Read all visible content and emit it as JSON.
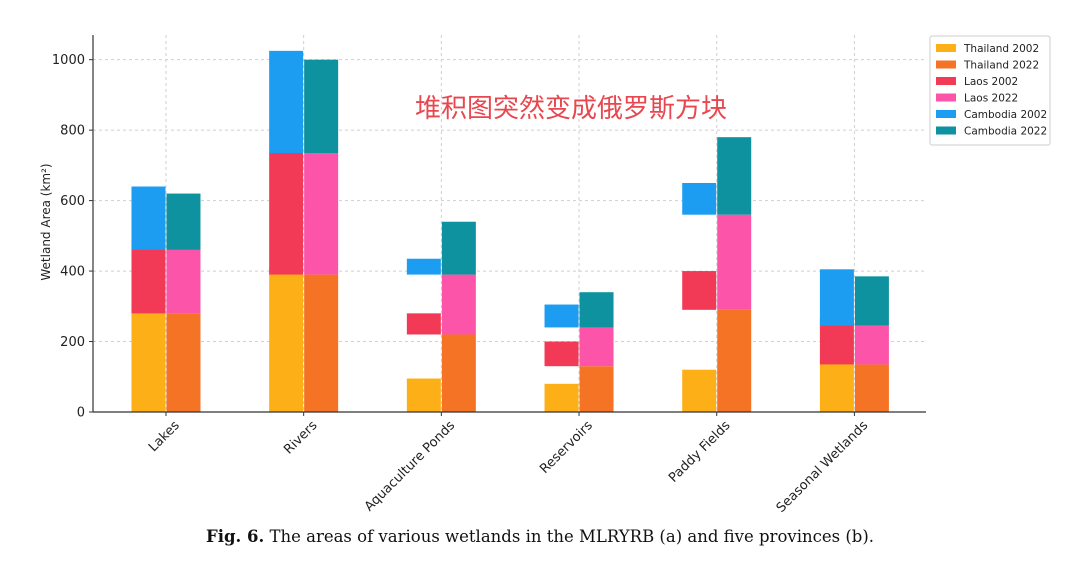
{
  "chart_data": {
    "type": "bar",
    "stacked_offset": true,
    "categories": [
      "Lakes",
      "Rivers",
      "Aquaculture Ponds",
      "Reservoirs",
      "Paddy Fields",
      "Seasonal Wetlands"
    ],
    "series": [
      {
        "name": "Thailand 2002",
        "color": "#fcaf17",
        "values": [
          320,
          410,
          95,
          80,
          120,
          150
        ]
      },
      {
        "name": "Thailand 2022",
        "color": "#f57325",
        "values": [
          280,
          390,
          220,
          130,
          290,
          135
        ]
      },
      {
        "name": "Laos 2002",
        "color": "#f23a56",
        "values": [
          210,
          350,
          60,
          70,
          110,
          130
        ]
      },
      {
        "name": "Laos 2022",
        "color": "#fc54a8",
        "values": [
          180,
          345,
          170,
          110,
          270,
          110
        ]
      },
      {
        "name": "Cambodia 2002",
        "color": "#1c9df2",
        "values": [
          180,
          290,
          45,
          65,
          90,
          160
        ]
      },
      {
        "name": "Cambodia 2022",
        "color": "#0e929f",
        "values": [
          160,
          265,
          150,
          100,
          220,
          140
        ]
      }
    ],
    "ylabel": "Wetland Area (km²)",
    "xlabel": "",
    "ylim": [
      0,
      1070
    ],
    "yticks": [
      0,
      200,
      400,
      600,
      800,
      1000
    ],
    "grid": true,
    "legend": "top-right",
    "annotation": "堆积图突然变成俄罗斯方块"
  },
  "caption": {
    "label": "Fig. 6.",
    "text": "The areas of various wetlands in the MLRYRB (a) and five provinces (b)."
  }
}
